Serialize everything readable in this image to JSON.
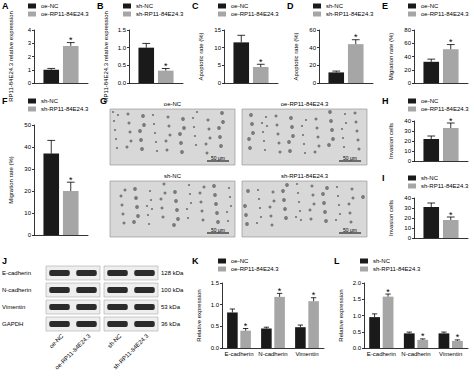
{
  "chart_data": [
    {
      "panel": "A",
      "type": "bar",
      "ylabel": "RP11-84E24.3 relative expression",
      "categories": [
        null
      ],
      "series": [
        {
          "name": "oe-NC",
          "color": "#1a1a1a",
          "values": [
            1.0
          ],
          "errors": [
            0.1
          ]
        },
        {
          "name": "oe-RP11-84E24.3",
          "color": "#a6a6a6",
          "values": [
            2.8
          ],
          "errors": [
            0.25
          ],
          "annotations": [
            "*"
          ]
        }
      ],
      "ylim": [
        0,
        4
      ],
      "yticks": [
        0,
        1,
        2,
        3,
        4
      ],
      "grid": false,
      "tick_labels": "y",
      "legend": "top-left"
    },
    {
      "panel": "B",
      "type": "bar",
      "ylabel": "RP11-84E24.3 relative expression",
      "categories": [
        null
      ],
      "series": [
        {
          "name": "sh-NC",
          "color": "#1a1a1a",
          "values": [
            1.0
          ],
          "errors": [
            0.12
          ]
        },
        {
          "name": "sh-RP11-84E24.3",
          "color": "#a6a6a6",
          "values": [
            0.35
          ],
          "errors": [
            0.06
          ],
          "annotations": [
            "*"
          ]
        }
      ],
      "ylim": [
        0,
        1.5
      ],
      "yticks": [
        {
          "value": 0,
          "label": "0.0"
        },
        0.5,
        {
          "value": 1,
          "label": "1.0"
        },
        1.5
      ],
      "grid": false,
      "tick_labels": "y",
      "legend": "top-left"
    },
    {
      "panel": "C",
      "type": "bar",
      "ylabel": "Apoptotic rate (%)",
      "categories": [
        null
      ],
      "series": [
        {
          "name": "oe-NC",
          "color": "#1a1a1a",
          "values": [
            11.5
          ],
          "errors": [
            2
          ]
        },
        {
          "name": "oe-RP11-84E24.3",
          "color": "#a6a6a6",
          "values": [
            4.5
          ],
          "errors": [
            0.8
          ],
          "annotations": [
            "*"
          ]
        }
      ],
      "ylim": [
        0,
        15
      ],
      "yticks": [
        0,
        5,
        10,
        15
      ],
      "grid": false,
      "tick_labels": "y",
      "legend": "top-left"
    },
    {
      "panel": "D",
      "type": "bar",
      "ylabel": "Apoptotic rate (%)",
      "categories": [
        null
      ],
      "series": [
        {
          "name": "sh-NC",
          "color": "#1a1a1a",
          "values": [
            12
          ],
          "errors": [
            1.5
          ]
        },
        {
          "name": "sh-RP11-84E24.3",
          "color": "#a6a6a6",
          "values": [
            44
          ],
          "errors": [
            5
          ],
          "annotations": [
            "*"
          ]
        }
      ],
      "ylim": [
        0,
        60
      ],
      "yticks": [
        0,
        20,
        40,
        60
      ],
      "grid": false,
      "tick_labels": "y",
      "legend": "top-left"
    },
    {
      "panel": "E",
      "type": "bar",
      "ylabel": "Migration rate (%)",
      "categories": [
        null
      ],
      "series": [
        {
          "name": "oe-NC",
          "color": "#1a1a1a",
          "values": [
            32
          ],
          "errors": [
            4
          ]
        },
        {
          "name": "oe-RP11-84E24.3",
          "color": "#a6a6a6",
          "values": [
            51
          ],
          "errors": [
            7
          ],
          "annotations": [
            "*"
          ]
        }
      ],
      "ylim": [
        0,
        80
      ],
      "yticks": [
        0,
        20,
        40,
        60,
        80
      ],
      "grid": false,
      "tick_labels": "y",
      "legend": "top-left"
    },
    {
      "panel": "F",
      "type": "bar",
      "ylabel": "Migration rate (%)",
      "categories": [
        null
      ],
      "series": [
        {
          "name": "sh-NC",
          "color": "#1a1a1a",
          "values": [
            37
          ],
          "errors": [
            6
          ]
        },
        {
          "name": "sh-RP11-84E24.3",
          "color": "#a6a6a6",
          "values": [
            20
          ],
          "errors": [
            4
          ],
          "annotations": [
            "*"
          ]
        }
      ],
      "ylim": [
        0,
        50
      ],
      "yticks": [
        0,
        10,
        20,
        30,
        40,
        50
      ],
      "grid": false,
      "tick_labels": "y",
      "legend": "top-left"
    },
    {
      "panel": "H",
      "type": "bar",
      "ylabel": "Invasion cells",
      "categories": [
        null
      ],
      "series": [
        {
          "name": "oe-NC",
          "color": "#1a1a1a",
          "values": [
            22
          ],
          "errors": [
            3
          ]
        },
        {
          "name": "oe-RP11-84E24.3",
          "color": "#a6a6a6",
          "values": [
            33
          ],
          "errors": [
            5
          ],
          "annotations": [
            "*"
          ]
        }
      ],
      "ylim": [
        0,
        40
      ],
      "yticks": [
        0,
        10,
        20,
        30,
        40
      ],
      "grid": false,
      "tick_labels": "y",
      "legend": "top-left"
    },
    {
      "panel": "I",
      "type": "bar",
      "ylabel": "Invasion cells",
      "categories": [
        null
      ],
      "series": [
        {
          "name": "sh-NC",
          "color": "#1a1a1a",
          "values": [
            31
          ],
          "errors": [
            4
          ]
        },
        {
          "name": "sh-RP11-84E24.3",
          "color": "#a6a6a6",
          "values": [
            18
          ],
          "errors": [
            3
          ],
          "annotations": [
            "*"
          ]
        }
      ],
      "ylim": [
        0,
        40
      ],
      "yticks": [
        0,
        10,
        20,
        30,
        40
      ],
      "grid": false,
      "tick_labels": "y",
      "legend": "top-left"
    },
    {
      "panel": "K",
      "type": "bar",
      "ylabel": "Relative expression",
      "categories": [
        "E-cadherin",
        "N-cadherin",
        "Vimentin"
      ],
      "series": [
        {
          "name": "oe-NC",
          "color": "#1a1a1a",
          "values": [
            0.82,
            0.45,
            0.48
          ],
          "errors": [
            0.08,
            0.03,
            0.05
          ]
        },
        {
          "name": "oe-RP11-84E24.3",
          "color": "#a6a6a6",
          "values": [
            0.4,
            1.18,
            1.08
          ],
          "errors": [
            0.05,
            0.08,
            0.08
          ],
          "annotations": [
            "*",
            "*",
            "*"
          ]
        }
      ],
      "ylim": [
        0,
        1.5
      ],
      "yticks": [
        {
          "value": 0,
          "label": "0.0"
        },
        0.5,
        {
          "value": 1,
          "label": "1.0"
        },
        1.5
      ],
      "grid": false,
      "legend": "top-left"
    },
    {
      "panel": "L",
      "type": "bar",
      "ylabel": "Relative expression",
      "categories": [
        "E-cadherin",
        "N-cadherin",
        "Vimentin"
      ],
      "series": [
        {
          "name": "sh-NC",
          "color": "#1a1a1a",
          "values": [
            0.95,
            0.45,
            0.45
          ],
          "errors": [
            0.1,
            0.04,
            0.04
          ]
        },
        {
          "name": "sh-RP11-84E24.3",
          "color": "#a6a6a6",
          "values": [
            1.58,
            0.25,
            0.22
          ],
          "errors": [
            0.08,
            0.03,
            0.03
          ],
          "annotations": [
            "*",
            "*",
            "*"
          ]
        }
      ],
      "ylim": [
        0,
        2
      ],
      "yticks": [
        {
          "value": 0,
          "label": "0.0"
        },
        0.5,
        {
          "value": 1,
          "label": "1.0"
        },
        1.5,
        {
          "value": 2,
          "label": "2.0"
        }
      ],
      "grid": false,
      "legend": "top-left"
    }
  ],
  "micrographs": {
    "panel": "G",
    "images": [
      {
        "label": "oe-NC",
        "scale_bar": "50 μm"
      },
      {
        "label": "oe-RP11-84E24.3",
        "scale_bar": "50 μm"
      },
      {
        "label": "sh-NC",
        "scale_bar": "50 μm"
      },
      {
        "label": "sh-RP11-84E24.3",
        "scale_bar": "50 μm"
      }
    ]
  },
  "western_blot": {
    "panel": "J",
    "lanes": [
      "oe-NC",
      "oe-RP11-84E24.3",
      "sh-NC",
      "sh-RP11-84E24.3"
    ],
    "bands": [
      {
        "protein": "E-cadherin",
        "size": "128 kDa"
      },
      {
        "protein": "N-cadherin",
        "size": "100 kDa"
      },
      {
        "protein": "Vimentin",
        "size": "53 kDa"
      },
      {
        "protein": "GAPDH",
        "size": "36 kDa"
      }
    ]
  }
}
